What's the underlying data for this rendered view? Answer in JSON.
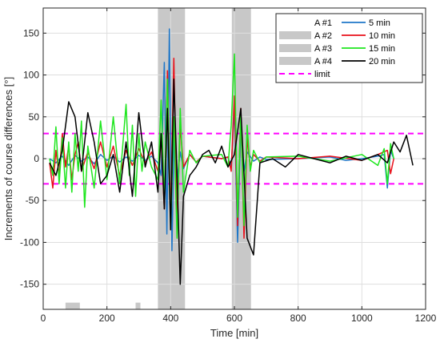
{
  "chart_data": {
    "type": "line",
    "xlabel": "Time [min]",
    "ylabel": "Increments of course differences [°]",
    "xlim": [
      0,
      1200
    ],
    "ylim": [
      -180,
      180
    ],
    "xticks": [
      0,
      200,
      400,
      600,
      800,
      1000,
      1200
    ],
    "yticks": [
      -150,
      -100,
      -50,
      0,
      50,
      100,
      150
    ],
    "xtick_labels": [
      "0",
      "200",
      "400",
      "600",
      "800",
      "1000",
      "1200"
    ],
    "ytick_labels": [
      "-150",
      "-100",
      "-50",
      "0",
      "50",
      "100",
      "150"
    ],
    "grid": true,
    "legend_position": "top-right",
    "limits": {
      "name": "limit",
      "values": [
        30,
        -30
      ],
      "color": "#ff00ff"
    },
    "shaded_regions": [
      {
        "x": [
          360,
          445
        ],
        "y": [
          -180,
          180
        ],
        "color": "#c8c8c8"
      },
      {
        "x": [
          592,
          652
        ],
        "y": [
          -180,
          180
        ],
        "color": "#c8c8c8"
      },
      {
        "x": [
          70,
          115
        ],
        "y": [
          -180,
          -172
        ],
        "color": "#c8c8c8"
      },
      {
        "x": [
          290,
          305
        ],
        "y": [
          -180,
          -172
        ],
        "color": "#c8c8c8"
      }
    ],
    "legend_left": [
      "A #1",
      "A #2",
      "A #3",
      "A #4"
    ],
    "series": [
      {
        "name": "5 min",
        "color": "#1f77c8",
        "x": [
          20,
          40,
          60,
          80,
          100,
          120,
          140,
          160,
          180,
          200,
          220,
          240,
          260,
          280,
          300,
          320,
          340,
          360,
          370,
          380,
          388,
          396,
          404,
          412,
          420,
          430,
          440,
          460,
          480,
          500,
          560,
          580,
          590,
          600,
          610,
          620,
          630,
          640,
          660,
          680,
          700,
          800,
          900,
          950,
          1000,
          1050,
          1070,
          1080,
          1090,
          1100
        ],
        "y": [
          0,
          -5,
          3,
          -8,
          4,
          -3,
          2,
          -6,
          5,
          -2,
          3,
          -4,
          2,
          -3,
          4,
          -2,
          3,
          -5,
          -20,
          115,
          -90,
          155,
          -110,
          50,
          -25,
          8,
          -12,
          5,
          -4,
          3,
          0,
          2,
          -10,
          60,
          -100,
          40,
          -15,
          8,
          -3,
          2,
          -1,
          0,
          2,
          -2,
          0,
          3,
          5,
          -35,
          10,
          0
        ]
      },
      {
        "name": "10 min",
        "color": "#e8101a",
        "x": [
          20,
          30,
          40,
          50,
          60,
          70,
          80,
          90,
          100,
          110,
          120,
          140,
          160,
          180,
          200,
          220,
          240,
          260,
          280,
          300,
          320,
          340,
          360,
          370,
          380,
          390,
          400,
          410,
          420,
          430,
          440,
          460,
          480,
          500,
          560,
          580,
          590,
          600,
          610,
          620,
          630,
          640,
          650,
          660,
          680,
          700,
          800,
          900,
          1000,
          1050,
          1080,
          1090,
          1100
        ],
        "y": [
          -5,
          -35,
          10,
          -20,
          30,
          -10,
          15,
          -25,
          5,
          20,
          -15,
          8,
          -12,
          20,
          -10,
          15,
          -20,
          10,
          -8,
          12,
          -5,
          8,
          -15,
          25,
          -60,
          105,
          -70,
          120,
          -80,
          40,
          -10,
          5,
          -4,
          3,
          0,
          2,
          -15,
          75,
          -80,
          60,
          -95,
          25,
          -10,
          5,
          -3,
          2,
          0,
          3,
          -2,
          5,
          10,
          -18,
          0
        ]
      },
      {
        "name": "15 min",
        "color": "#1ee61e",
        "x": [
          20,
          30,
          40,
          50,
          60,
          70,
          80,
          90,
          100,
          110,
          120,
          130,
          140,
          160,
          180,
          200,
          220,
          240,
          260,
          270,
          280,
          290,
          300,
          310,
          320,
          340,
          360,
          370,
          380,
          390,
          400,
          410,
          420,
          430,
          440,
          460,
          480,
          500,
          560,
          580,
          590,
          600,
          610,
          620,
          630,
          640,
          650,
          660,
          680,
          700,
          800,
          900,
          1000,
          1050,
          1070,
          1080,
          1090,
          1100
        ],
        "y": [
          0,
          -20,
          38,
          -30,
          25,
          -35,
          20,
          -40,
          30,
          -15,
          45,
          -58,
          15,
          -35,
          45,
          -25,
          50,
          -30,
          65,
          -20,
          40,
          -45,
          30,
          -15,
          20,
          -10,
          -25,
          70,
          -50,
          95,
          -80,
          50,
          -95,
          60,
          -40,
          10,
          -5,
          3,
          5,
          -10,
          40,
          125,
          -70,
          55,
          -80,
          40,
          -15,
          10,
          -5,
          2,
          3,
          -3,
          5,
          -8,
          12,
          -30,
          18,
          0
        ]
      },
      {
        "name": "20 min",
        "color": "#000000",
        "x": [
          20,
          40,
          60,
          80,
          100,
          120,
          140,
          160,
          180,
          200,
          220,
          240,
          260,
          280,
          300,
          320,
          340,
          360,
          370,
          380,
          390,
          400,
          410,
          420,
          430,
          440,
          460,
          480,
          500,
          520,
          540,
          560,
          580,
          600,
          620,
          640,
          660,
          680,
          720,
          760,
          800,
          850,
          900,
          950,
          1000,
          1050,
          1080,
          1100,
          1120,
          1140,
          1160
        ],
        "y": [
          -5,
          -20,
          10,
          68,
          50,
          -15,
          55,
          20,
          -30,
          -20,
          5,
          -40,
          20,
          -45,
          55,
          -10,
          20,
          -40,
          30,
          -60,
          60,
          -85,
          95,
          -20,
          -150,
          -45,
          -20,
          -10,
          5,
          10,
          -5,
          15,
          -10,
          5,
          60,
          -95,
          -115,
          -5,
          0,
          -10,
          5,
          0,
          -5,
          3,
          -2,
          5,
          -5,
          20,
          8,
          28,
          -8
        ]
      }
    ]
  }
}
